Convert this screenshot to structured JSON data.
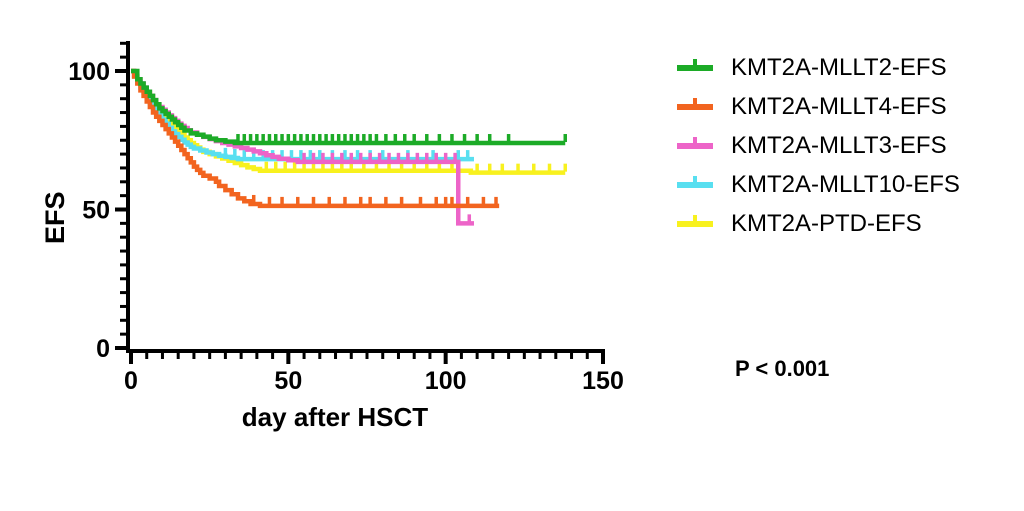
{
  "figure": {
    "background": "#ffffff",
    "axis_color": "#000000"
  },
  "annotation": {
    "p_label": "P",
    "p_rest": " < 0.001"
  },
  "chart_data": {
    "type": "line",
    "subtype": "kaplan-meier-step-curves",
    "title": "",
    "xlabel": "day after HSCT",
    "ylabel": "EFS",
    "xlim": [
      0,
      150
    ],
    "ylim": [
      0,
      100
    ],
    "x_ticks": [
      0,
      50,
      100,
      150
    ],
    "y_ticks": [
      0,
      50,
      100
    ],
    "x_minor_tick_step": 5,
    "y_minor_tick_step": 5,
    "grid": false,
    "legend_position": "right",
    "series": [
      {
        "name": "KMT2A-MLLT2-EFS",
        "color": "#1CAB27",
        "steps": [
          [
            0,
            100
          ],
          [
            2,
            97
          ],
          [
            3,
            95.5
          ],
          [
            4,
            94
          ],
          [
            5,
            92.5
          ],
          [
            6,
            91
          ],
          [
            7,
            89.5
          ],
          [
            8,
            88
          ],
          [
            9,
            86.5
          ],
          [
            10,
            85.5
          ],
          [
            11,
            84.5
          ],
          [
            12,
            83.5
          ],
          [
            13,
            82.5
          ],
          [
            14,
            81.5
          ],
          [
            15,
            80.5
          ],
          [
            16,
            79.5
          ],
          [
            17,
            78.5
          ],
          [
            19,
            77.5
          ],
          [
            21,
            77
          ],
          [
            23,
            76.3
          ],
          [
            25,
            75.6
          ],
          [
            27,
            75
          ],
          [
            30,
            74.5
          ],
          [
            33,
            74
          ],
          [
            138,
            74
          ]
        ],
        "censor_days": [
          34,
          36,
          38,
          40,
          42,
          44,
          46,
          48,
          50,
          52,
          54,
          56,
          58,
          60,
          62,
          64,
          66,
          68,
          70,
          72,
          74,
          76,
          78,
          81,
          84,
          87,
          90,
          94,
          98,
          102,
          106,
          110,
          114,
          120,
          138
        ]
      },
      {
        "name": "KMT2A-MLLT4-EFS",
        "color": "#F2641F",
        "steps": [
          [
            0,
            100
          ],
          [
            1,
            98
          ],
          [
            2,
            95.5
          ],
          [
            3,
            93
          ],
          [
            4,
            91
          ],
          [
            5,
            89
          ],
          [
            6,
            87
          ],
          [
            7,
            85
          ],
          [
            8,
            83.5
          ],
          [
            9,
            82
          ],
          [
            10,
            80.5
          ],
          [
            11,
            79
          ],
          [
            12,
            77.5
          ],
          [
            13,
            76
          ],
          [
            14,
            74.5
          ],
          [
            15,
            73
          ],
          [
            16,
            71.5
          ],
          [
            17,
            70
          ],
          [
            18,
            68.5
          ],
          [
            19,
            67
          ],
          [
            20,
            65.5
          ],
          [
            21,
            64.3
          ],
          [
            22,
            63.2
          ],
          [
            23,
            62.2
          ],
          [
            25,
            61.2
          ],
          [
            27,
            60
          ],
          [
            28,
            58.5
          ],
          [
            30,
            57
          ],
          [
            32,
            55.5
          ],
          [
            34,
            54
          ],
          [
            36,
            53
          ],
          [
            38,
            52
          ],
          [
            41,
            51.3
          ],
          [
            117,
            51.3
          ]
        ],
        "censor_days": [
          39,
          44,
          48,
          53,
          58,
          63,
          68,
          73,
          76,
          81,
          86,
          92,
          97,
          100,
          102,
          107,
          112,
          116
        ]
      },
      {
        "name": "KMT2A-MLLT3-EFS",
        "color": "#ED64C8",
        "steps": [
          [
            0,
            100
          ],
          [
            1,
            98.5
          ],
          [
            2,
            97
          ],
          [
            3,
            95.5
          ],
          [
            4,
            94
          ],
          [
            5,
            92.5
          ],
          [
            6,
            91
          ],
          [
            7,
            89.5
          ],
          [
            8,
            88
          ],
          [
            9,
            87
          ],
          [
            10,
            86
          ],
          [
            11,
            85
          ],
          [
            12,
            84
          ],
          [
            13,
            83
          ],
          [
            14,
            82
          ],
          [
            15,
            81
          ],
          [
            16,
            80.2
          ],
          [
            17,
            79.4
          ],
          [
            18,
            78.6
          ],
          [
            19,
            77.8
          ],
          [
            21,
            77
          ],
          [
            23,
            76.2
          ],
          [
            25,
            75.4
          ],
          [
            27,
            74.7
          ],
          [
            29,
            74
          ],
          [
            31,
            73.4
          ],
          [
            33,
            72.8
          ],
          [
            35,
            72.2
          ],
          [
            37,
            71.6
          ],
          [
            39,
            71
          ],
          [
            41,
            70.3
          ],
          [
            43,
            69.6
          ],
          [
            45,
            69
          ],
          [
            47,
            68.3
          ],
          [
            50,
            67.8
          ],
          [
            53,
            67.2
          ],
          [
            104,
            45
          ],
          [
            109,
            45
          ]
        ],
        "censor_days": [
          55,
          58,
          61,
          64,
          67,
          70,
          73,
          76,
          79,
          82,
          85,
          88,
          91,
          94,
          97,
          100,
          103,
          107.5
        ]
      },
      {
        "name": "KMT2A-MLLT10-EFS",
        "color": "#58DFF0",
        "steps": [
          [
            0,
            100
          ],
          [
            1,
            98
          ],
          [
            2,
            96
          ],
          [
            3,
            94
          ],
          [
            4,
            92
          ],
          [
            5,
            90
          ],
          [
            6,
            88.5
          ],
          [
            7,
            87
          ],
          [
            8,
            85.5
          ],
          [
            9,
            84
          ],
          [
            10,
            82.5
          ],
          [
            11,
            81
          ],
          [
            12,
            79.5
          ],
          [
            13,
            78.2
          ],
          [
            14,
            77.2
          ],
          [
            15,
            76.2
          ],
          [
            16,
            75.2
          ],
          [
            17,
            74.2
          ],
          [
            18,
            73.4
          ],
          [
            19,
            72.6
          ],
          [
            20,
            72
          ],
          [
            22,
            71.3
          ],
          [
            24,
            70.6
          ],
          [
            26,
            70
          ],
          [
            28,
            69.4
          ],
          [
            30,
            69
          ],
          [
            32,
            68.6
          ],
          [
            34,
            68.2
          ],
          [
            109,
            68.2
          ]
        ],
        "censor_days": [
          30,
          33,
          36,
          39,
          42,
          45,
          48,
          51,
          54,
          57,
          60,
          64,
          68,
          72,
          76,
          80,
          88,
          96,
          104,
          107
        ]
      },
      {
        "name": "KMT2A-PTD-EFS",
        "color": "#F8F11E",
        "steps": [
          [
            0,
            100
          ],
          [
            1,
            98
          ],
          [
            2,
            96.5
          ],
          [
            3,
            95
          ],
          [
            4,
            93.5
          ],
          [
            5,
            92
          ],
          [
            6,
            90.5
          ],
          [
            7,
            89
          ],
          [
            8,
            87.5
          ],
          [
            9,
            86
          ],
          [
            10,
            84.5
          ],
          [
            11,
            83
          ],
          [
            12,
            81.5
          ],
          [
            13,
            80.2
          ],
          [
            14,
            79
          ],
          [
            15,
            78
          ],
          [
            16,
            77
          ],
          [
            17,
            76
          ],
          [
            18,
            75
          ],
          [
            19,
            74
          ],
          [
            20,
            73.2
          ],
          [
            21,
            72.4
          ],
          [
            22,
            71.6
          ],
          [
            23,
            70.8
          ],
          [
            25,
            70
          ],
          [
            27,
            69.2
          ],
          [
            29,
            68.4
          ],
          [
            31,
            67.6
          ],
          [
            33,
            66.8
          ],
          [
            35,
            66
          ],
          [
            37,
            65.2
          ],
          [
            39,
            64.6
          ],
          [
            41,
            64
          ],
          [
            107,
            64
          ],
          [
            108,
            63.3
          ],
          [
            138,
            63.3
          ]
        ],
        "censor_days": [
          43,
          46,
          49,
          52,
          55,
          58,
          61,
          64,
          67,
          70,
          74,
          78,
          82,
          86,
          90,
          94,
          98,
          102,
          110,
          114,
          118,
          123,
          128,
          133,
          138
        ]
      }
    ]
  }
}
